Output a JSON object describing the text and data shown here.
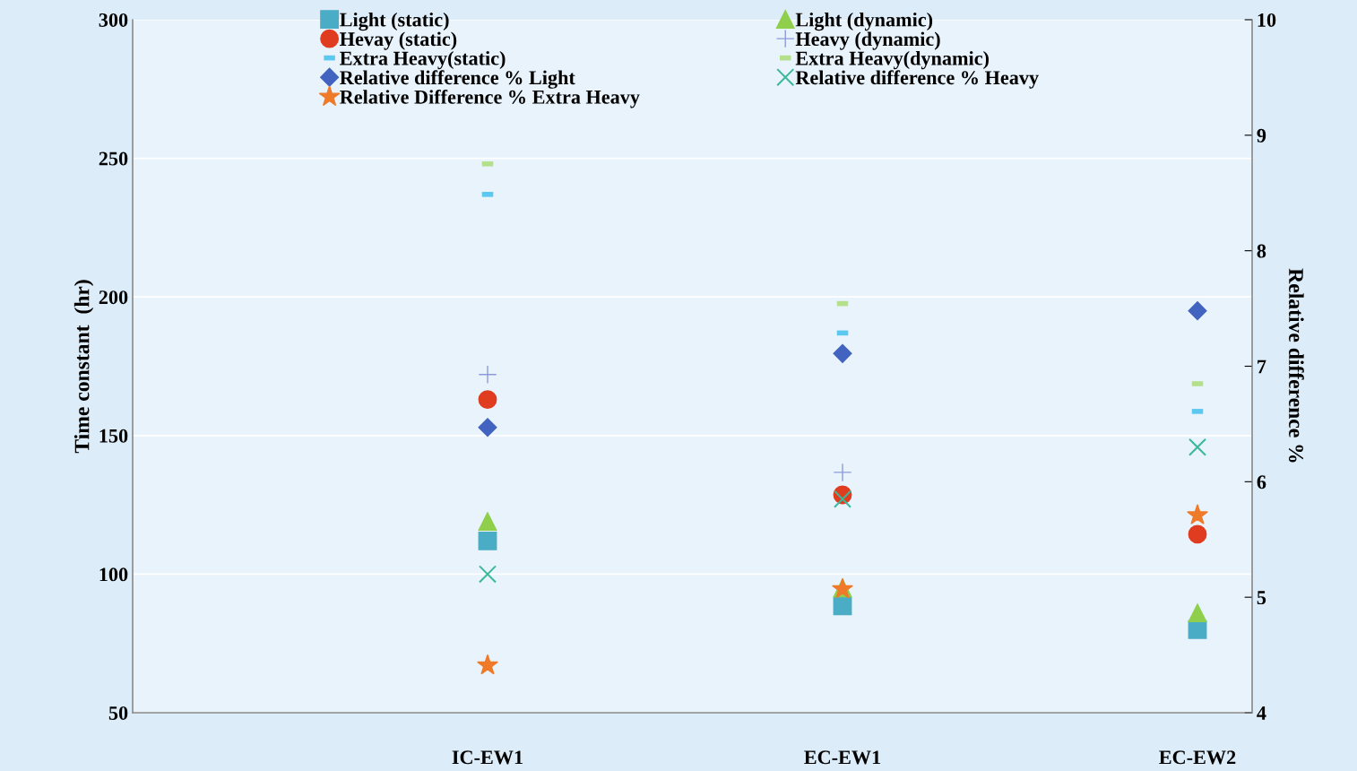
{
  "chart_data": {
    "type": "scatter",
    "ylabel": "Time constant  (hr)",
    "y2label": "Relative difference %",
    "categories": [
      "IC-EW1",
      "EC-EW1",
      "EC-EW2"
    ],
    "ylim": [
      50,
      300
    ],
    "yticks": [
      50,
      100,
      150,
      200,
      250,
      300
    ],
    "y2lim": [
      4,
      10
    ],
    "y2ticks": [
      4,
      5,
      6,
      7,
      8,
      9,
      10
    ],
    "grid": "y",
    "legend": "top",
    "series": [
      {
        "name": "Light (static)",
        "color": "#4bacc6",
        "marker": "square",
        "values": [
          112,
          88.5,
          80
        ]
      },
      {
        "name": "Light (dynamic)",
        "color": "#8fcf4c",
        "marker": "triangle",
        "values": [
          119,
          95,
          86
        ]
      },
      {
        "name": "Hevay (static)",
        "color": "#e03c1f",
        "marker": "circle",
        "values": [
          163,
          128.6,
          114.4
        ]
      },
      {
        "name": "Heavy (dynamic)",
        "color": "#8e9bd9",
        "marker": "plus",
        "values": [
          172,
          136.7,
          null
        ]
      },
      {
        "name": "Extra Heavy(static)",
        "color": "#5bc8f0",
        "values": [
          237,
          187,
          158.7
        ]
      },
      {
        "name": "Extra Heavy(dynamic)",
        "color": "#b4e08c",
        "values": [
          248,
          197.6,
          168.7
        ]
      },
      {
        "name": "Relative difference % Light",
        "color": "#4263c0",
        "marker": "diamond",
        "axis": "y2",
        "values": [
          6.47,
          7.11,
          7.48
        ]
      },
      {
        "name": "Relative difference % Heavy",
        "color": "#3cb89a",
        "marker": "cross",
        "axis": "y2",
        "values": [
          5.2,
          5.85,
          6.3
        ]
      },
      {
        "name": "Relative Difference % Extra Heavy",
        "color": "#ee7a2a",
        "marker": "star",
        "axis": "y2",
        "values": [
          4.41,
          5.07,
          5.71
        ]
      }
    ]
  }
}
